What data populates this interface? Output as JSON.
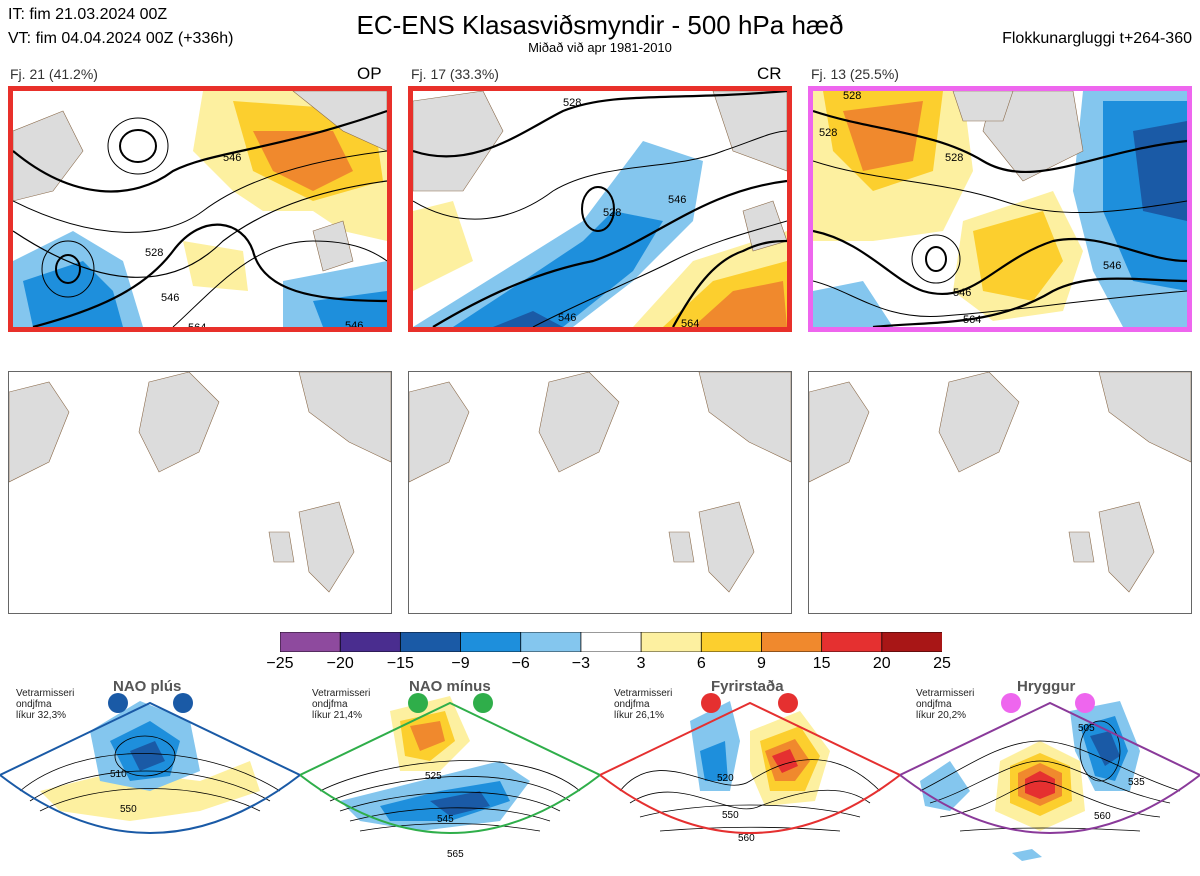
{
  "header": {
    "initial_time": "IT: fim 21.03.2024 00Z",
    "valid_time": "VT: fim 04.04.2024 00Z  (+336h)",
    "title": "EC-ENS Klasasviðsmyndir - 500 hPa hæð",
    "subtitle": "Miðað við apr 1981-2010",
    "window": "Flokkunargluggi t+264-360"
  },
  "clusters": [
    {
      "label": "Fj. 21 (41.2%)",
      "tag": "OP",
      "border_color": "#e8302a",
      "contour_labels": [
        "546",
        "528",
        "546",
        "564",
        "546"
      ]
    },
    {
      "label": "Fj. 17 (33.3%)",
      "tag": "CR",
      "border_color": "#e8302a",
      "contour_labels": [
        "528",
        "546",
        "528",
        "546",
        "564"
      ]
    },
    {
      "label": "Fj. 13 (25.5%)",
      "tag": "",
      "border_color": "#ee66ee",
      "contour_labels": [
        "528",
        "528",
        "528",
        "546",
        "546",
        "564"
      ]
    }
  ],
  "colorbar": {
    "ticks": [
      "−25",
      "−20",
      "−15",
      "−9",
      "−6",
      "−3",
      "3",
      "6",
      "9",
      "15",
      "20",
      "25"
    ],
    "colors": [
      "#8e4a9e",
      "#4a2d8f",
      "#1a5aa6",
      "#1e8fdc",
      "#84c6ee",
      "#ffffff",
      "#fdf0a0",
      "#fccf2e",
      "#f0892d",
      "#e53030",
      "#a81616"
    ]
  },
  "regimes": [
    {
      "name": "NAO plús",
      "info": "Vetrarmisseri\nondjfma\nlíkur 32,3%",
      "color": "#1a5aa6",
      "labels": [
        "510",
        "550"
      ]
    },
    {
      "name": "NAO mínus",
      "info": "Vetrarmisseri\nondjfma\nlíkur 21,4%",
      "color": "#2fae4a",
      "labels": [
        "525",
        "545",
        "565"
      ]
    },
    {
      "name": "Fyrirstaða",
      "info": "Vetrarmisseri\nondjfma\nlíkur 26,1%",
      "color": "#e53030",
      "labels": [
        "520",
        "550",
        "560"
      ]
    },
    {
      "name": "Hryggur",
      "info": "Vetrarmisseri\nondjfma\nlíkur 20,2%",
      "color": "#ee66ee",
      "labels": [
        "505",
        "535",
        "560"
      ]
    }
  ]
}
